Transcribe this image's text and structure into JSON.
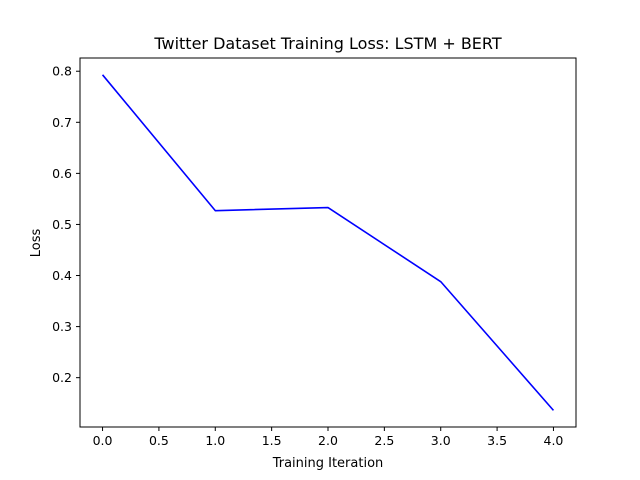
{
  "chart_data": {
    "type": "line",
    "title": "Twitter Dataset Training Loss: LSTM + BERT",
    "xlabel": "Training Iteration",
    "ylabel": "Loss",
    "x": [
      0,
      1,
      2,
      3,
      4
    ],
    "series": [
      {
        "values": [
          0.793,
          0.527,
          0.533,
          0.388,
          0.136
        ],
        "color": "#0000ff"
      }
    ],
    "xlim": [
      -0.2,
      4.2
    ],
    "ylim": [
      0.1034,
      0.8259
    ],
    "xticks": [
      0.0,
      0.5,
      1.0,
      1.5,
      2.0,
      2.5,
      3.0,
      3.5,
      4.0
    ],
    "xtick_labels": [
      "0.0",
      "0.5",
      "1.0",
      "1.5",
      "2.0",
      "2.5",
      "3.0",
      "3.5",
      "4.0"
    ],
    "yticks": [
      0.2,
      0.3,
      0.4,
      0.5,
      0.6,
      0.7,
      0.8
    ],
    "ytick_labels": [
      "0.2",
      "0.3",
      "0.4",
      "0.5",
      "0.6",
      "0.7",
      "0.8"
    ],
    "grid": false,
    "legend": "none"
  }
}
